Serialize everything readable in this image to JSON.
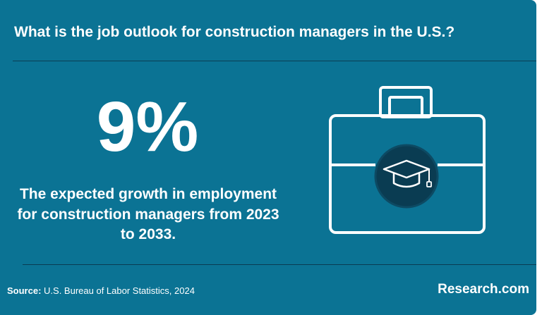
{
  "title": "What is the job outlook for construction managers in the U.S.?",
  "stat": "9%",
  "description": "The expected growth in employment for construction managers from 2023 to 2033.",
  "source": {
    "label": "Source:",
    "text": "U.S. Bureau of Labor Statistics, 2024"
  },
  "brand": "Research.com",
  "icons": {
    "main": "briefcase-icon",
    "inner": "graduation-cap-icon"
  },
  "colors": {
    "background": "#0b7394",
    "divider": "#0a3c52",
    "icon_circle": "#0a3c52",
    "text": "#ffffff"
  }
}
